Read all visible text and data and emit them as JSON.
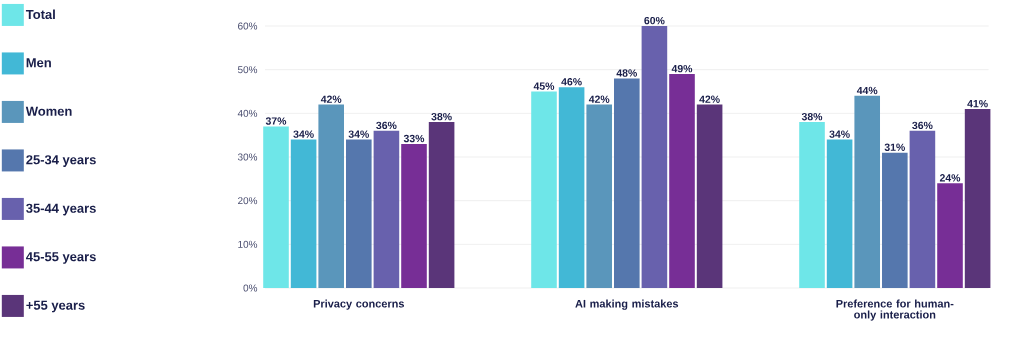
{
  "chart_data": {
    "type": "bar",
    "categories": [
      "Privacy concerns",
      "AI making mistakes",
      "Preference for human-only interaction"
    ],
    "series": [
      {
        "name": "Total",
        "color": "#6ee6e8",
        "values": [
          37,
          45,
          38
        ],
        "value_labels": [
          "37%",
          "45%",
          "38%"
        ]
      },
      {
        "name": "Men",
        "color": "#42b8d6",
        "values": [
          34,
          46,
          34
        ],
        "value_labels": [
          "34%",
          "46%",
          "34%"
        ]
      },
      {
        "name": "Women",
        "color": "#5a96bb",
        "values": [
          42,
          42,
          44
        ],
        "value_labels": [
          "42%",
          "42%",
          "44%"
        ]
      },
      {
        "name": "25-34 years",
        "color": "#5577ad",
        "values": [
          34,
          48,
          31
        ],
        "value_labels": [
          "34%",
          "48%",
          "31%"
        ]
      },
      {
        "name": "35-44 years",
        "color": "#6861ad",
        "values": [
          36,
          60,
          36
        ],
        "value_labels": [
          "36%",
          "60%",
          "36%"
        ]
      },
      {
        "name": "45-55 years",
        "color": "#772e96",
        "values": [
          33,
          49,
          24
        ],
        "value_labels": [
          "33%",
          "49%",
          "24%"
        ]
      },
      {
        "name": "+55 years",
        "color": "#5a3579",
        "values": [
          38,
          42,
          41
        ],
        "value_labels": [
          "38%",
          "42%",
          "41%"
        ]
      }
    ],
    "ylim": [
      0,
      60
    ],
    "yticks": [
      {
        "value": 0,
        "label": "0%"
      },
      {
        "value": 10,
        "label": "10%"
      },
      {
        "value": 20,
        "label": "20%"
      },
      {
        "value": 30,
        "label": "30%"
      },
      {
        "value": 40,
        "label": "40%"
      },
      {
        "value": 50,
        "label": "50%"
      },
      {
        "value": 60,
        "label": "60%"
      }
    ],
    "grid": "y",
    "legend": "left"
  }
}
